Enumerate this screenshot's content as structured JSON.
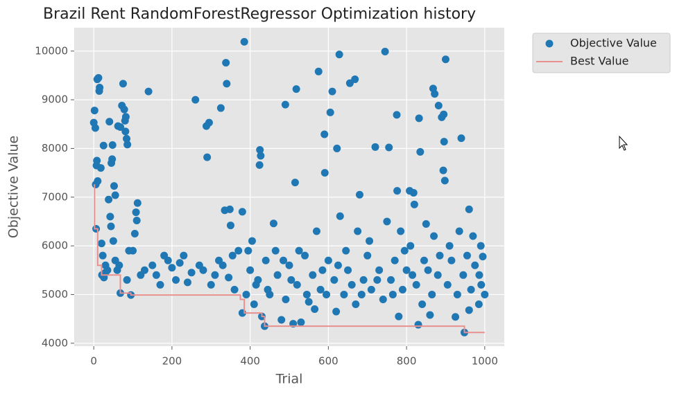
{
  "chart_data": {
    "type": "scatter",
    "title": "Brazil Rent RandomForestRegressor Optimization history",
    "x_label": "Trial",
    "y_label": "Objective Value",
    "xlim": [
      -50,
      1050
    ],
    "ylim": [
      3940,
      10480
    ],
    "xticks": [
      0,
      200,
      400,
      600,
      800,
      1000
    ],
    "yticks": [
      4000,
      5000,
      6000,
      7000,
      8000,
      9000,
      10000
    ],
    "grid": true,
    "legend": "outside-right",
    "series": [
      {
        "name": "Objective Value",
        "color": "#1f77b4",
        "kind": "points",
        "x": [
          0,
          2,
          4,
          5,
          7,
          8,
          6,
          9,
          12,
          14,
          15,
          10,
          18,
          20,
          25,
          30,
          40,
          48,
          45,
          47,
          52,
          55,
          38,
          42,
          44,
          50,
          62,
          68,
          72,
          75,
          78,
          80,
          82,
          84,
          86,
          81,
          108,
          112,
          110,
          105,
          140,
          260,
          288,
          295,
          290,
          325,
          338,
          340,
          335,
          348,
          350,
          385,
          380,
          425,
          427,
          424,
          460,
          490,
          518,
          515,
          575,
          590,
          591,
          605,
          610,
          622,
          628,
          630,
          655,
          668,
          680,
          720,
          745,
          755,
          775,
          776,
          808,
          818,
          820,
          832,
          835,
          850,
          868,
          872,
          882,
          890,
          895,
          896,
          894,
          898,
          900,
          940,
          960,
          970,
          990,
          68,
          95,
          380,
          430,
          437,
          480,
          510,
          530,
          565,
          620,
          780,
          830,
          860,
          925,
          948,
          960,
          985,
          100,
          120,
          150,
          170,
          190,
          210,
          230,
          250,
          270,
          300,
          320,
          345,
          360,
          370,
          390,
          400,
          410,
          420,
          440,
          450,
          470,
          491,
          500,
          520,
          540,
          550,
          560,
          580,
          600,
          615,
          640,
          650,
          670,
          690,
          700,
          710,
          730,
          740,
          760,
          770,
          790,
          800,
          810,
          825,
          840,
          855,
          865,
          880,
          905,
          915,
          930,
          945,
          955,
          965,
          975,
          991,
          1000,
          995,
          130,
          160,
          180,
          200,
          220,
          240,
          280,
          310,
          330,
          355,
          395,
          405,
          415,
          445,
          465,
          485,
          505,
          525,
          545,
          570,
          585,
          595,
          625,
          645,
          660,
          675,
          685,
          705,
          725,
          750,
          765,
          785,
          795,
          815,
          845,
          870,
          885,
          910,
          935,
          986,
          21,
          26,
          30,
          35,
          55,
          60,
          65,
          85,
          90,
          23
        ],
        "values": [
          8530,
          8780,
          8420,
          7260,
          7650,
          7750,
          6350,
          9420,
          9450,
          9180,
          9250,
          7330,
          7600,
          6050,
          8060,
          5450,
          8550,
          8070,
          7700,
          7780,
          7230,
          7040,
          6950,
          6600,
          6400,
          6100,
          8460,
          8440,
          8880,
          9330,
          8800,
          8570,
          8650,
          8200,
          8080,
          8350,
          6690,
          6880,
          6520,
          6250,
          9170,
          9000,
          8460,
          8530,
          7820,
          8830,
          9760,
          9330,
          6730,
          6750,
          6420,
          10190,
          6700,
          7970,
          7850,
          7660,
          6460,
          8900,
          9220,
          7300,
          9580,
          8290,
          7500,
          8740,
          9170,
          8000,
          9930,
          6610,
          9340,
          9420,
          7050,
          8030,
          9990,
          8020,
          8690,
          7130,
          7130,
          7090,
          6850,
          8620,
          7930,
          6450,
          9230,
          9120,
          8880,
          8640,
          8700,
          8140,
          7550,
          7340,
          9830,
          8210,
          6750,
          6200,
          6000,
          5030,
          4990,
          4620,
          4550,
          4350,
          4480,
          4400,
          4430,
          4700,
          4650,
          4550,
          4380,
          4580,
          4540,
          4220,
          4680,
          4800,
          5900,
          5400,
          5600,
          5200,
          5700,
          5300,
          5800,
          5450,
          5600,
          5200,
          5700,
          5350,
          5100,
          5900,
          5000,
          5500,
          4800,
          5300,
          5700,
          5000,
          5400,
          4900,
          5600,
          5200,
          5800,
          4850,
          5400,
          5100,
          5700,
          5300,
          5000,
          5500,
          4800,
          5300,
          5800,
          5100,
          5500,
          4900,
          5300,
          5700,
          5100,
          5500,
          6000,
          5200,
          4800,
          5500,
          5000,
          5400,
          5200,
          5700,
          5000,
          5400,
          5800,
          5100,
          5600,
          5200,
          5000,
          5780,
          5500,
          5400,
          5800,
          5550,
          5650,
          5250,
          5500,
          5400,
          5600,
          5800,
          5900,
          6100,
          5200,
          5100,
          5900,
          5700,
          5300,
          5900,
          5000,
          6300,
          5500,
          5000,
          5600,
          5900,
          5200,
          6300,
          5000,
          6100,
          5300,
          6500,
          5000,
          6300,
          5900,
          5400,
          5700,
          6200,
          5800,
          6000,
          6300,
          5400,
          5400,
          5350,
          5600,
          5500,
          5700,
          5500,
          5600,
          5300,
          5900,
          5800
        ]
      },
      {
        "name": "Best Value",
        "color": "#e8908e",
        "kind": "step",
        "x": [
          0,
          2,
          10,
          20,
          68,
          95,
          375,
          385,
          430,
          437,
          948,
          1000
        ],
        "values": [
          7250,
          6350,
          5600,
          5400,
          5030,
          4990,
          4900,
          4620,
          4550,
          4350,
          4220,
          4220
        ]
      }
    ]
  }
}
